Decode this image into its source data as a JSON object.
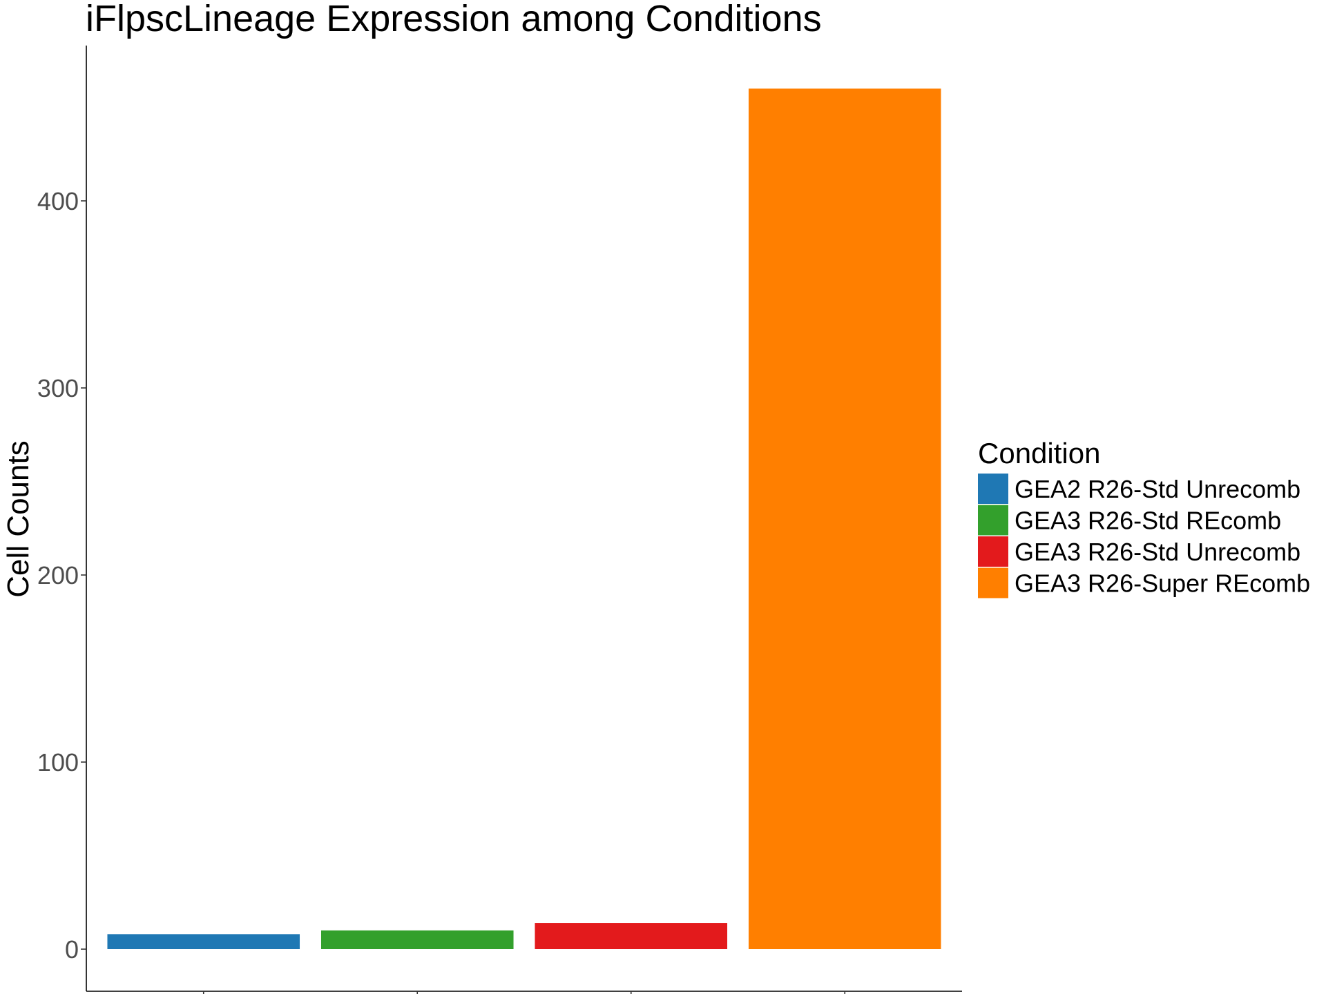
{
  "chart_data": {
    "type": "bar",
    "title": "iFlpscLineage Expression among Conditions",
    "xlabel": "",
    "ylabel": "Cell Counts",
    "categories": [
      "GEA2 R26-Std Unrecomb",
      "GEA3 R26-Std REcomb",
      "GEA3 R26-Std Unrecomb",
      "GEA3 R26-Super REcomb"
    ],
    "values": [
      8,
      10,
      14,
      460
    ],
    "colors": [
      "#1f78b4",
      "#33a02c",
      "#e31a1c",
      "#ff7f00"
    ],
    "ylim": [
      -23,
      482
    ],
    "yticks": [
      0,
      100,
      200,
      300,
      400
    ],
    "ytick_labels": [
      "0",
      "100",
      "200",
      "300",
      "400"
    ],
    "x_tick_labels_shown": false,
    "grid": false,
    "legend": {
      "title": "Condition",
      "position": "right",
      "entries": [
        {
          "label": "GEA2 R26-Std Unrecomb",
          "color": "#1f78b4"
        },
        {
          "label": "GEA3 R26-Std REcomb",
          "color": "#33a02c"
        },
        {
          "label": "GEA3 R26-Std Unrecomb",
          "color": "#e31a1c"
        },
        {
          "label": "GEA3 R26-Super REcomb",
          "color": "#ff7f00"
        }
      ]
    }
  }
}
